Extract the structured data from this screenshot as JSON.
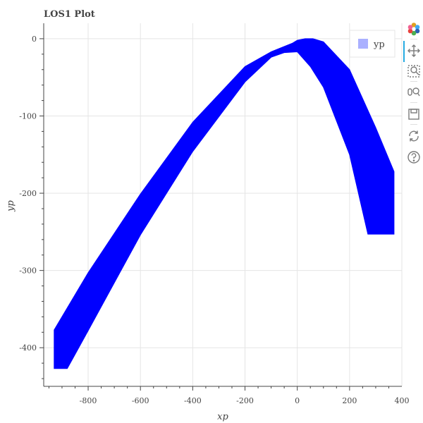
{
  "chart_data": {
    "type": "area",
    "title": "LOS1 Plot",
    "xlabel": "xp",
    "ylabel": "yp",
    "xlim": [
      -970,
      400
    ],
    "ylim": [
      -450,
      20
    ],
    "x_ticks": [
      -800,
      -600,
      -400,
      -200,
      0,
      200,
      400
    ],
    "y_ticks": [
      0,
      -100,
      -200,
      -300,
      -400
    ],
    "x_tick_labels": [
      "-800",
      "-600",
      "-400",
      "-200",
      "0",
      "200",
      "400"
    ],
    "y_tick_labels": [
      "0",
      "-100",
      "-200",
      "-300",
      "-400"
    ],
    "grid": true,
    "legend": {
      "position": "top-right",
      "entries": [
        "yp"
      ]
    },
    "series": [
      {
        "name": "yp",
        "color": "#0000ff",
        "upper": [
          [
            -930,
            -377
          ],
          [
            -800,
            -303
          ],
          [
            -600,
            -201
          ],
          [
            -400,
            -108
          ],
          [
            -200,
            -36
          ],
          [
            -100,
            -17
          ],
          [
            -50,
            -10
          ],
          [
            -20,
            -6
          ],
          [
            0,
            -2
          ],
          [
            30,
            0
          ],
          [
            60,
            0
          ],
          [
            100,
            -4
          ],
          [
            200,
            -40
          ],
          [
            300,
            -115
          ],
          [
            370,
            -172
          ]
        ],
        "lower": [
          [
            -930,
            -427
          ],
          [
            -880,
            -427
          ],
          [
            -800,
            -378
          ],
          [
            -600,
            -254
          ],
          [
            -400,
            -146
          ],
          [
            -200,
            -56
          ],
          [
            -100,
            -24
          ],
          [
            -50,
            -18
          ],
          [
            0,
            -17
          ],
          [
            50,
            -36
          ],
          [
            100,
            -63
          ],
          [
            200,
            -150
          ],
          [
            270,
            -253
          ],
          [
            370,
            -253
          ]
        ]
      }
    ]
  },
  "legend": {
    "label": "yp",
    "swatch_color": "#aab0ff"
  },
  "toolbar": {
    "tools": [
      {
        "name": "bokeh-logo-icon"
      },
      {
        "name": "pan-tool-icon"
      },
      {
        "name": "box-zoom-tool-icon"
      },
      {
        "name": "wheel-zoom-tool-icon"
      },
      {
        "name": "save-tool-icon"
      },
      {
        "name": "reset-tool-icon"
      },
      {
        "name": "help-tool-icon"
      }
    ]
  }
}
